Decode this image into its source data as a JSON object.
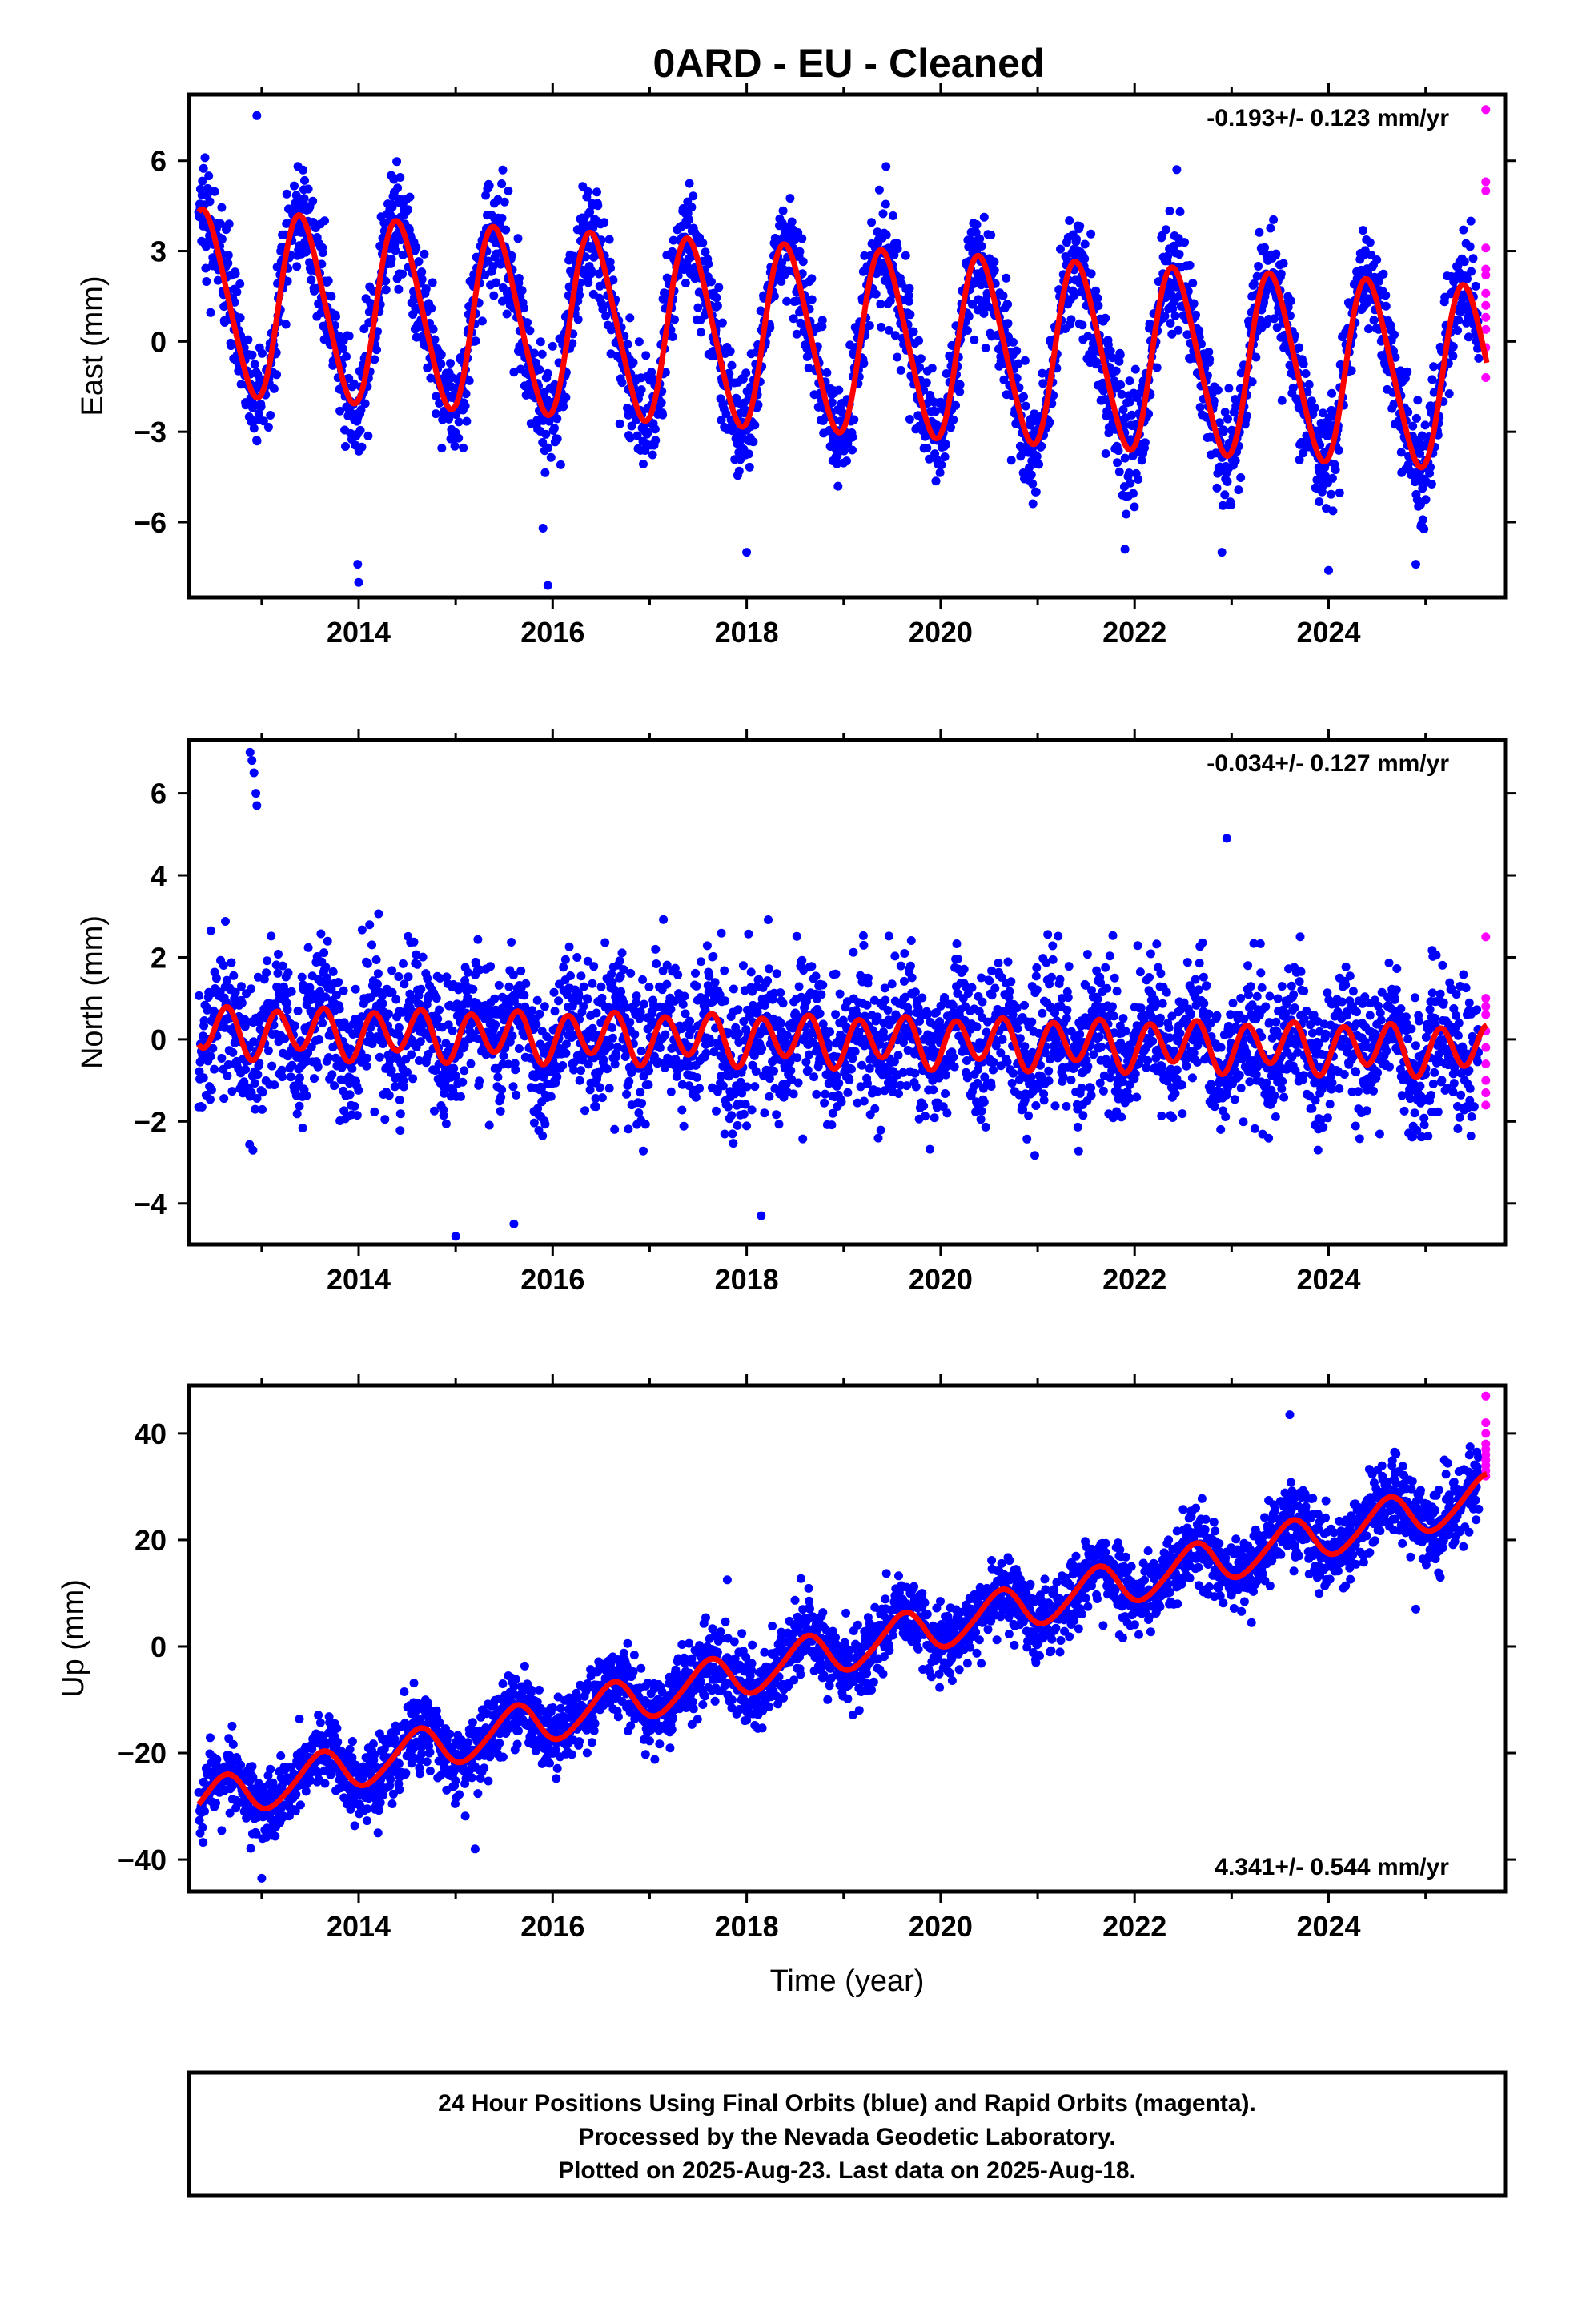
{
  "figure": {
    "title": "0ARD  - EU - Cleaned",
    "footer": [
      "24 Hour Positions Using Final Orbits (blue) and Rapid Orbits (magenta).",
      "Processed by the Nevada Geodetic Laboratory.",
      "Plotted on 2025-Aug-23. Last data on 2025-Aug-18."
    ],
    "colors": {
      "final_orbits": "#0000ff",
      "rapid_orbits": "#ff00ff",
      "model_fit": "#ff0000"
    }
  },
  "chart_data": [
    {
      "type": "scatter",
      "ylabel": "East (mm)",
      "xlabel": "",
      "rate_label": "-0.193+/- 0.123 mm/yr",
      "rate_position": "top-right",
      "xlim": [
        2012.25,
        2025.82
      ],
      "ylim": [
        -8.5,
        8.2
      ],
      "xticks": [
        2014,
        2016,
        2018,
        2020,
        2022,
        2024
      ],
      "yticks": [
        -6,
        -3,
        0,
        3,
        6
      ],
      "grid": false,
      "model": {
        "start": 2012.35,
        "end": 2025.63,
        "offset": 1.3,
        "trend": -0.193,
        "annual_amplitude": 3.0,
        "annual_peak": 0.42,
        "semiannual_amplitude": 0.35,
        "semiannual_peak": 0.3
      },
      "final_orbits": {
        "start": 2012.35,
        "end": 2025.55,
        "noise_sd": 0.9,
        "outliers": [
          [
            2012.95,
            7.5
          ],
          [
            2013.99,
            -7.4
          ],
          [
            2014.0,
            -8.0
          ],
          [
            2015.9,
            -6.2
          ],
          [
            2015.95,
            -8.1
          ],
          [
            2018.0,
            -7.0
          ],
          [
            2021.9,
            -6.9
          ],
          [
            2022.9,
            -7.0
          ],
          [
            2024.0,
            -7.6
          ],
          [
            2024.9,
            -7.4
          ]
        ]
      },
      "rapid_orbits": {
        "x": 2025.62,
        "y": [
          7.7,
          5.3,
          5.0,
          3.1,
          2.4,
          2.2,
          1.6,
          1.2,
          0.8,
          0.4,
          -0.2,
          -1.2
        ]
      }
    },
    {
      "type": "scatter",
      "ylabel": "North (mm)",
      "xlabel": "",
      "rate_label": "-0.034+/- 0.127 mm/yr",
      "rate_position": "top-right",
      "xlim": [
        2012.25,
        2025.82
      ],
      "ylim": [
        -5.0,
        7.3
      ],
      "xticks": [
        2014,
        2016,
        2018,
        2020,
        2022,
        2024
      ],
      "yticks": [
        -4,
        -2,
        0,
        2,
        4,
        6
      ],
      "grid": false,
      "model": {
        "start": 2012.35,
        "end": 2025.63,
        "offset": 0.2,
        "trend": -0.034,
        "annual_amplitude": 0.15,
        "annual_peak": 0.45,
        "semiannual_amplitude": 0.55,
        "semiannual_peak": 0.15
      },
      "final_orbits": {
        "start": 2012.35,
        "end": 2025.55,
        "noise_sd": 0.85,
        "outliers": [
          [
            2012.88,
            7.0
          ],
          [
            2012.9,
            6.8
          ],
          [
            2012.92,
            6.5
          ],
          [
            2012.94,
            6.0
          ],
          [
            2012.95,
            5.7
          ],
          [
            2015.0,
            -4.8
          ],
          [
            2015.6,
            -4.5
          ],
          [
            2018.15,
            -4.3
          ],
          [
            2022.95,
            4.9
          ]
        ]
      },
      "rapid_orbits": {
        "x": 2025.62,
        "y": [
          2.5,
          1.0,
          0.8,
          0.6,
          0.2,
          -0.2,
          -0.6,
          -1.0,
          -1.3,
          -1.6
        ]
      }
    },
    {
      "type": "scatter",
      "ylabel": "Up (mm)",
      "xlabel": "Time (year)",
      "rate_label": "4.341+/- 0.544 mm/yr",
      "rate_position": "bottom-right",
      "xlim": [
        2012.25,
        2025.82
      ],
      "ylim": [
        -46,
        49
      ],
      "xticks": [
        2014,
        2016,
        2018,
        2020,
        2022,
        2024
      ],
      "yticks": [
        -40,
        -20,
        0,
        20,
        40
      ],
      "grid": false,
      "model": {
        "start": 2012.35,
        "end": 2025.63,
        "offset": -29.5,
        "trend": 4.341,
        "annual_amplitude": 4.0,
        "annual_peak": 0.6,
        "semiannual_amplitude": 0.5,
        "semiannual_peak": 0.2
      },
      "final_orbits": {
        "start": 2012.35,
        "end": 2025.55,
        "noise_sd": 3.5,
        "outliers": [
          [
            2013.0,
            -43.5
          ],
          [
            2014.2,
            -35.0
          ],
          [
            2015.2,
            -38.0
          ],
          [
            2017.8,
            12.5
          ],
          [
            2023.6,
            43.5
          ],
          [
            2024.9,
            7.0
          ]
        ]
      },
      "rapid_orbits": {
        "x": 2025.62,
        "y": [
          47.0,
          42.0,
          40.0,
          38.0,
          37.0,
          36.0,
          35.0,
          34.0,
          33.0,
          32.0
        ]
      }
    }
  ]
}
